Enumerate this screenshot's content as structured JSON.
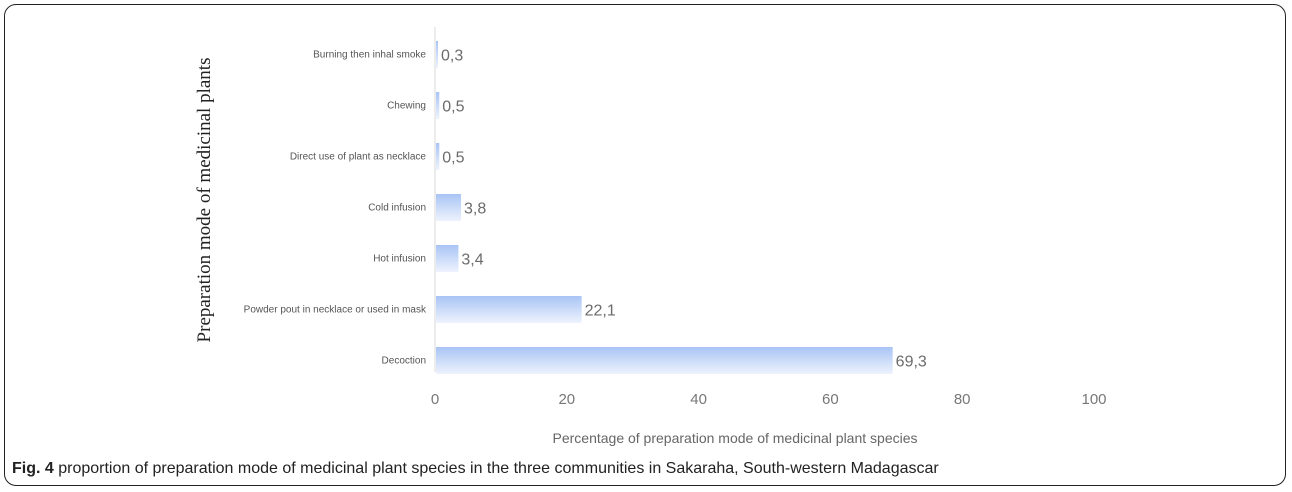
{
  "caption": {
    "label": "Fig. 4",
    "text": " proportion of preparation mode of medicinal plant species in the three communities in Sakaraha, South-western Madagascar"
  },
  "chart_data": {
    "type": "bar",
    "orientation": "horizontal",
    "categories": [
      "Burning then inhal smoke",
      "Chewing",
      "Direct use of plant as necklace",
      "Cold infusion",
      "Hot infusion",
      "Powder pout in necklace or used in mask",
      "Decoction"
    ],
    "values": [
      0.3,
      0.5,
      0.5,
      3.8,
      3.4,
      22.1,
      69.3
    ],
    "value_labels": [
      "0,3",
      "0,5",
      "0,5",
      "3,8",
      "3,4",
      "22,1",
      "69,3"
    ],
    "xlabel": "Percentage  of preparation mode of medicinal plant species",
    "ylabel": "Preparation mode of medicinal plants",
    "xlim": [
      0,
      100
    ],
    "xticks": [
      0,
      20,
      40,
      60,
      80,
      100
    ],
    "grid": false,
    "bar_color": "#a9c4f5"
  }
}
